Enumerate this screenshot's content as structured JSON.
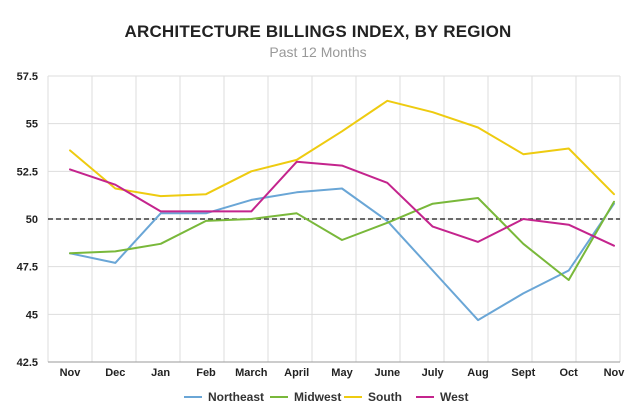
{
  "chart_data": {
    "type": "line",
    "title": "ARCHITECTURE BILLINGS INDEX, BY REGION",
    "subtitle": "Past 12 Months",
    "categories": [
      "Nov",
      "Dec",
      "Jan",
      "Feb",
      "March",
      "April",
      "May",
      "June",
      "July",
      "Aug",
      "Sept",
      "Oct",
      "Nov"
    ],
    "yticks": [
      "57.5",
      "55",
      "52.5",
      "50",
      "47.5",
      "45",
      "42.5"
    ],
    "ylim": [
      42.5,
      57.5
    ],
    "reference_line": 50,
    "grid": true,
    "legend_position": "bottom",
    "series": [
      {
        "name": "Northeast",
        "color": "#6aa6d6",
        "values": [
          48.2,
          47.7,
          50.3,
          50.3,
          51.0,
          51.4,
          51.6,
          49.9,
          47.3,
          44.7,
          46.1,
          47.3,
          50.8
        ]
      },
      {
        "name": "Midwest",
        "color": "#79b83a",
        "values": [
          48.2,
          48.3,
          48.7,
          49.9,
          50.0,
          50.3,
          48.9,
          49.8,
          50.8,
          51.1,
          48.7,
          46.8,
          50.9
        ]
      },
      {
        "name": "South",
        "color": "#eecb10",
        "values": [
          53.6,
          51.6,
          51.2,
          51.3,
          52.5,
          53.1,
          54.6,
          56.2,
          55.6,
          54.8,
          53.4,
          53.7,
          51.3
        ]
      },
      {
        "name": "West",
        "color": "#c4248d",
        "values": [
          52.6,
          51.8,
          50.4,
          50.4,
          50.4,
          53.0,
          52.8,
          51.9,
          49.6,
          48.8,
          50.0,
          49.7,
          48.6
        ]
      }
    ]
  }
}
